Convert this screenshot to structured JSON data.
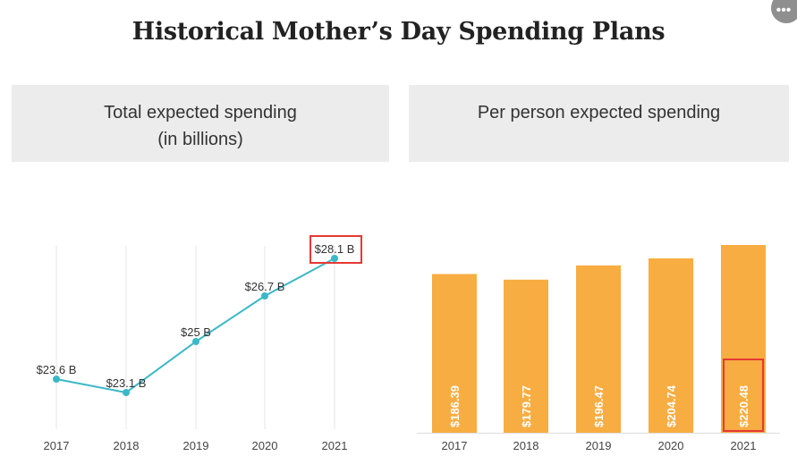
{
  "title": "Historical Mother’s Day Spending Plans",
  "more_button_icon": "more-horizontal-icon",
  "more_button_glyph": "•••",
  "colors": {
    "line": "#3bb8c8",
    "bar": "#f8ad42",
    "highlight": "#e53935",
    "grid": "#e4e4e4",
    "panel": "#ececec"
  },
  "chart_data": [
    {
      "type": "line",
      "title_line1": "Total expected spending",
      "title_line2": "(in billions)",
      "categories": [
        "2017",
        "2018",
        "2019",
        "2020",
        "2021"
      ],
      "values": [
        23.6,
        23.1,
        25.0,
        26.7,
        28.1
      ],
      "data_labels": [
        "$23.6 B",
        "$23.1 B",
        "$25 B",
        "$26.7 B",
        "$28.1 B"
      ],
      "ylim": [
        21.5,
        28.5
      ],
      "highlighted_index": 4
    },
    {
      "type": "bar",
      "title": "Per person expected spending",
      "categories": [
        "2017",
        "2018",
        "2019",
        "2020",
        "2021"
      ],
      "values": [
        186.39,
        179.77,
        196.47,
        204.74,
        220.48
      ],
      "data_labels": [
        "$186.39",
        "$179.77",
        "$196.47",
        "$204.74",
        "$220.48"
      ],
      "ylim": [
        0,
        220.48
      ],
      "highlighted_index": 4
    }
  ]
}
